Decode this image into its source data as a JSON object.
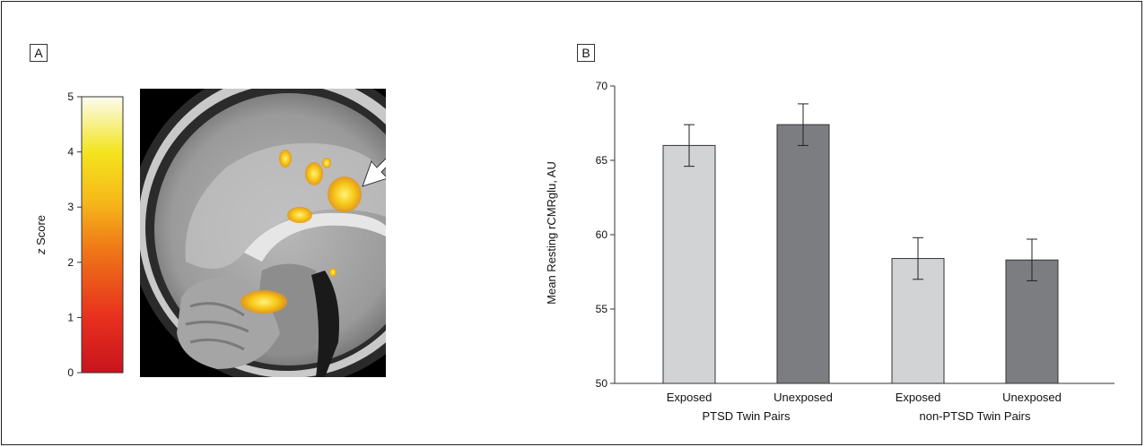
{
  "panel_a": {
    "label": "A",
    "colorbar": {
      "ticks": [
        "0",
        "1",
        "2",
        "3",
        "4",
        "5"
      ],
      "label_italic": "z",
      "label_rest": " Score",
      "colors": [
        "#c8141e",
        "#e8301e",
        "#f07818",
        "#f6b81a",
        "#f4e41e",
        "#fcfcf0"
      ]
    },
    "brain_image": {
      "description_icon": "sagittal-brain-scan",
      "arrow": "white-arrow-pointing-down-left"
    }
  },
  "panel_b": {
    "label": "B"
  },
  "chart_data": {
    "type": "bar",
    "title": "",
    "ylabel": "Mean Resting rCMRglu, AU",
    "xlabel": "",
    "ylim": [
      50,
      70
    ],
    "yticks": [
      50,
      55,
      60,
      65,
      70
    ],
    "categories": [
      "Exposed",
      "Unexposed",
      "Exposed",
      "Unexposed"
    ],
    "groups": [
      {
        "label": "PTSD Twin Pairs",
        "categories": [
          0,
          1
        ]
      },
      {
        "label": "non-PTSD Twin Pairs",
        "categories": [
          2,
          3
        ]
      }
    ],
    "values": [
      66.0,
      67.4,
      58.4,
      58.3
    ],
    "errors": [
      1.4,
      1.4,
      1.4,
      1.4
    ],
    "bar_colors": [
      "#d2d3d5",
      "#7c7d80",
      "#d2d3d5",
      "#7c7d80"
    ],
    "grid": false,
    "legend": "none"
  }
}
